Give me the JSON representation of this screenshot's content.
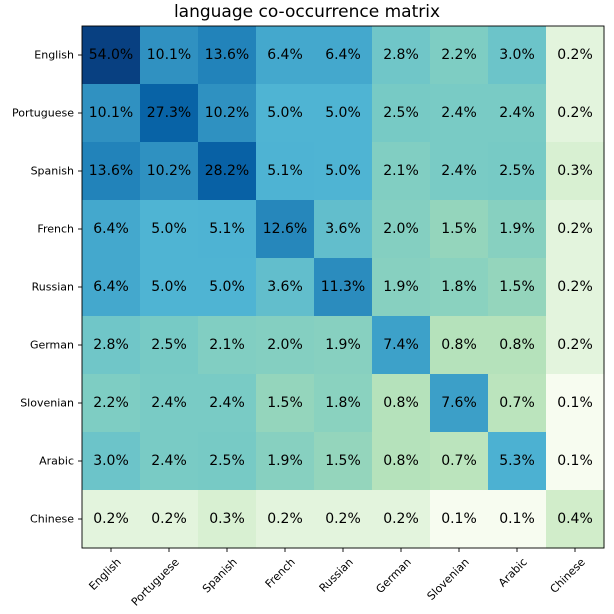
{
  "chart_data": {
    "type": "heatmap",
    "title": "language co-occurrence matrix",
    "xlabel": "",
    "ylabel": "",
    "rows": [
      "English",
      "Portuguese",
      "Spanish",
      "French",
      "Russian",
      "German",
      "Slovenian",
      "Arabic",
      "Chinese"
    ],
    "cols": [
      "English",
      "Portuguese",
      "Spanish",
      "French",
      "Russian",
      "German",
      "Slovenian",
      "Arabic",
      "Chinese"
    ],
    "values": [
      [
        54.0,
        10.1,
        13.6,
        6.4,
        6.4,
        2.8,
        2.2,
        3.0,
        0.2
      ],
      [
        10.1,
        27.3,
        10.2,
        5.0,
        5.0,
        2.5,
        2.4,
        2.4,
        0.2
      ],
      [
        13.6,
        10.2,
        28.2,
        5.1,
        5.0,
        2.1,
        2.4,
        2.5,
        0.3
      ],
      [
        6.4,
        5.0,
        5.1,
        12.6,
        3.6,
        2.0,
        1.5,
        1.9,
        0.2
      ],
      [
        6.4,
        5.0,
        5.0,
        3.6,
        11.3,
        1.9,
        1.8,
        1.5,
        0.2
      ],
      [
        2.8,
        2.5,
        2.1,
        2.0,
        1.9,
        7.4,
        0.8,
        0.8,
        0.2
      ],
      [
        2.2,
        2.4,
        2.4,
        1.5,
        1.8,
        0.8,
        7.6,
        0.7,
        0.1
      ],
      [
        3.0,
        2.4,
        2.5,
        1.9,
        1.5,
        0.8,
        0.7,
        5.3,
        0.1
      ],
      [
        0.2,
        0.2,
        0.3,
        0.2,
        0.2,
        0.2,
        0.1,
        0.1,
        0.4
      ]
    ],
    "value_suffix": "%",
    "colormap": "GnBu",
    "color_scale": "log",
    "grid": false,
    "legend": "none",
    "x_tick_rotation_deg": 45
  }
}
